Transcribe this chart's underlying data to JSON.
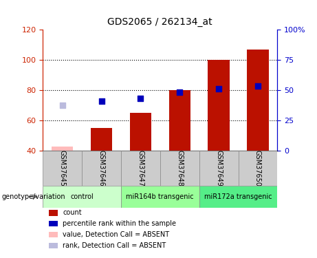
{
  "title": "GDS2065 / 262134_at",
  "samples": [
    "GSM37645",
    "GSM37646",
    "GSM37647",
    "GSM37648",
    "GSM37649",
    "GSM37650"
  ],
  "count_values": [
    null,
    55,
    65,
    80,
    100,
    107
  ],
  "count_absent": [
    43,
    null,
    null,
    null,
    null,
    null
  ],
  "rank_values_pct": [
    null,
    41,
    43.5,
    48.5,
    51,
    53.5
  ],
  "rank_absent_pct": [
    37.5,
    null,
    null,
    null,
    null,
    null
  ],
  "ylim_left": [
    40,
    120
  ],
  "ylim_right": [
    0,
    100
  ],
  "yticks_left": [
    40,
    60,
    80,
    100,
    120
  ],
  "yticks_right": [
    0,
    25,
    50,
    75,
    100
  ],
  "ytick_labels_right": [
    "0",
    "25",
    "50",
    "75",
    "100%"
  ],
  "grid_lines": [
    60,
    80,
    100
  ],
  "groups": [
    {
      "label": "control",
      "start": 0,
      "end": 2,
      "color": "#ccffcc"
    },
    {
      "label": "miR164b transgenic",
      "start": 2,
      "end": 4,
      "color": "#99ff99"
    },
    {
      "label": "miR172a transgenic",
      "start": 4,
      "end": 6,
      "color": "#55ee88"
    }
  ],
  "bar_color": "#bb1100",
  "bar_absent_color": "#ffbbbb",
  "rank_color": "#0000bb",
  "rank_absent_color": "#bbbbdd",
  "bar_width": 0.55,
  "rank_marker_size": 40,
  "legend_items": [
    {
      "label": "count",
      "color": "#bb1100"
    },
    {
      "label": "percentile rank within the sample",
      "color": "#0000bb"
    },
    {
      "label": "value, Detection Call = ABSENT",
      "color": "#ffbbbb"
    },
    {
      "label": "rank, Detection Call = ABSENT",
      "color": "#bbbbdd"
    }
  ],
  "left_tick_color": "#cc2200",
  "right_tick_color": "#0000cc",
  "sample_box_color": "#cccccc",
  "genotype_label": "genotype/variation"
}
